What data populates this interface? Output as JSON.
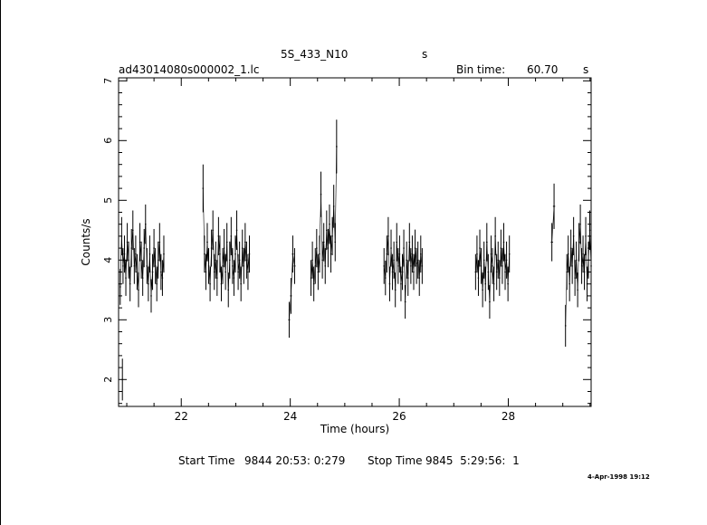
{
  "header": {
    "target": "5S_433_N10",
    "target_unit": "s",
    "filename": "ad43014080s000002_1.lc",
    "bin_time_label": "Bin time:",
    "bin_time_value": "60.70",
    "bin_time_unit": "s"
  },
  "footer": {
    "start_label": "Start Time",
    "start_value": "9844 20:53: 0:279",
    "stop_label": "Stop Time",
    "stop_value": "9845  5:29:56:  1",
    "timestamp": "4-Apr-1998 19:12"
  },
  "chart_data": {
    "type": "scatter",
    "xlabel": "Time (hours)",
    "ylabel": "Counts/s",
    "xlim": [
      20.85,
      29.52
    ],
    "ylim": [
      1.55,
      7.05
    ],
    "x_ticks": [
      22,
      24,
      26,
      28
    ],
    "y_ticks": [
      2,
      3,
      4,
      5,
      6,
      7
    ],
    "grid": false,
    "segments": [
      {
        "t_start": 20.88,
        "t_end": 21.68,
        "values": [
          3.55,
          4.4,
          3.9,
          4.1,
          3.7,
          4.3,
          4.0,
          3.6,
          4.2,
          4.5,
          3.9,
          4.1,
          3.8,
          3.5,
          4.3,
          4.0,
          3.7,
          4.2,
          4.6,
          3.9,
          3.6,
          4.1,
          3.4,
          3.8,
          4.2,
          3.9,
          3.6,
          4.0,
          4.3,
          3.8,
          3.7,
          4.1
        ],
        "errors": [
          0.3,
          0.32,
          0.3,
          0.31,
          0.3,
          0.32,
          0.31,
          0.29,
          0.32,
          0.33,
          0.3,
          0.31,
          0.3,
          0.29,
          0.32,
          0.31,
          0.3,
          0.32,
          0.33,
          0.3,
          0.29,
          0.31,
          0.28,
          0.3,
          0.32,
          0.3,
          0.29,
          0.31,
          0.32,
          0.3,
          0.3,
          0.31
        ]
      },
      {
        "t_start": 20.92,
        "t_end": 20.92,
        "values": [
          2.0
        ],
        "errors": [
          0.35
        ]
      },
      {
        "t_start": 22.4,
        "t_end": 23.25,
        "values": [
          5.2,
          4.1,
          3.8,
          4.3,
          3.9,
          3.6,
          4.2,
          4.5,
          3.8,
          4.0,
          3.7,
          4.4,
          4.1,
          3.6,
          3.9,
          4.2,
          3.8,
          4.3,
          3.5,
          4.0,
          4.4,
          3.9,
          3.7,
          4.1,
          4.5,
          3.8,
          4.0,
          3.6,
          4.2,
          3.9,
          4.3,
          4.0,
          3.8,
          4.1
        ],
        "errors": [
          0.4,
          0.31,
          0.3,
          0.32,
          0.3,
          0.29,
          0.31,
          0.33,
          0.3,
          0.31,
          0.3,
          0.32,
          0.31,
          0.29,
          0.3,
          0.32,
          0.3,
          0.32,
          0.29,
          0.31,
          0.32,
          0.3,
          0.3,
          0.31,
          0.33,
          0.3,
          0.31,
          0.29,
          0.31,
          0.3,
          0.32,
          0.31,
          0.3,
          0.31
        ]
      },
      {
        "t_start": 23.98,
        "t_end": 24.08,
        "values": [
          3.0,
          3.4,
          4.1,
          3.9
        ],
        "errors": [
          0.3,
          0.3,
          0.31,
          0.3
        ]
      },
      {
        "t_start": 24.38,
        "t_end": 24.85,
        "values": [
          3.7,
          4.0,
          3.6,
          3.9,
          4.2,
          3.8,
          4.1,
          5.1,
          4.0,
          4.3,
          3.9,
          4.5,
          4.2,
          4.6,
          4.1,
          4.4,
          4.9,
          4.3,
          5.9
        ],
        "errors": [
          0.3,
          0.31,
          0.29,
          0.3,
          0.32,
          0.3,
          0.31,
          0.38,
          0.31,
          0.32,
          0.3,
          0.33,
          0.32,
          0.33,
          0.31,
          0.32,
          0.36,
          0.32,
          0.45
        ]
      },
      {
        "t_start": 25.72,
        "t_end": 26.42,
        "values": [
          3.9,
          3.7,
          4.1,
          4.4,
          3.6,
          4.2,
          3.8,
          4.0,
          3.5,
          4.3,
          3.9,
          4.1,
          3.6,
          3.8,
          4.2,
          3.3,
          4.0,
          3.7,
          4.3,
          3.9,
          4.1,
          3.8,
          4.2,
          3.9,
          4.0,
          3.7,
          4.1,
          3.9
        ],
        "errors": [
          0.3,
          0.29,
          0.31,
          0.32,
          0.29,
          0.31,
          0.3,
          0.31,
          0.29,
          0.32,
          0.3,
          0.31,
          0.29,
          0.3,
          0.31,
          0.28,
          0.31,
          0.3,
          0.32,
          0.3,
          0.31,
          0.3,
          0.31,
          0.3,
          0.31,
          0.3,
          0.31,
          0.3
        ]
      },
      {
        "t_start": 27.4,
        "t_end": 28.02,
        "values": [
          3.8,
          4.1,
          3.7,
          4.2,
          3.9,
          3.5,
          4.0,
          3.6,
          4.3,
          3.8,
          3.3,
          4.1,
          3.9,
          3.6,
          4.4,
          3.8,
          4.0,
          3.7,
          4.2,
          3.9,
          4.3,
          3.8,
          4.0,
          3.6,
          4.1
        ],
        "errors": [
          0.3,
          0.31,
          0.3,
          0.31,
          0.3,
          0.29,
          0.31,
          0.29,
          0.32,
          0.3,
          0.28,
          0.31,
          0.3,
          0.29,
          0.32,
          0.3,
          0.31,
          0.3,
          0.31,
          0.3,
          0.32,
          0.3,
          0.31,
          0.29,
          0.31
        ]
      },
      {
        "t_start": 28.8,
        "t_end": 28.84,
        "values": [
          4.3,
          4.9
        ],
        "errors": [
          0.32,
          0.38
        ]
      },
      {
        "t_start": 29.05,
        "t_end": 29.52,
        "values": [
          2.9,
          3.8,
          4.1,
          3.6,
          4.2,
          3.9,
          4.4,
          3.7,
          4.0,
          3.5,
          4.3,
          4.6,
          3.9,
          4.1,
          3.8,
          4.4,
          3.6,
          4.0,
          4.5,
          3.9
        ],
        "errors": [
          0.35,
          0.3,
          0.31,
          0.29,
          0.31,
          0.3,
          0.32,
          0.3,
          0.31,
          0.29,
          0.32,
          0.33,
          0.3,
          0.31,
          0.3,
          0.32,
          0.29,
          0.31,
          0.33,
          0.3
        ]
      }
    ]
  }
}
